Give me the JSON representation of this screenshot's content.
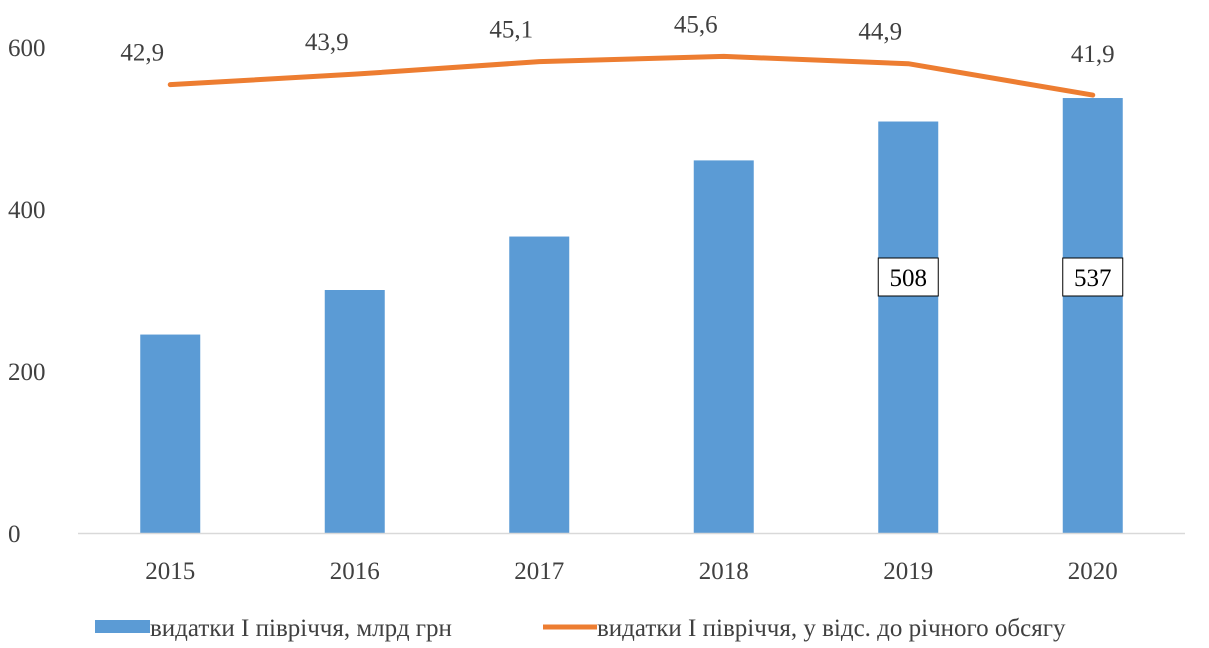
{
  "chart_data": {
    "type": "bar",
    "categories": [
      "2015",
      "2016",
      "2017",
      "2018",
      "2019",
      "2020"
    ],
    "series": [
      {
        "name": "видатки І півріччя, млрд грн",
        "chart_type": "bar",
        "axis": "left",
        "color": "#5B9BD5",
        "values": [
          245,
          300,
          366,
          460,
          508,
          537
        ],
        "data_labels": [
          null,
          null,
          null,
          null,
          "508",
          "537"
        ]
      },
      {
        "name": "видатки І півріччя, у відс. до річного обсягу",
        "chart_type": "line",
        "axis": "right-hidden",
        "color": "#ED7D31",
        "values": [
          42.9,
          43.9,
          45.1,
          45.6,
          44.9,
          41.9
        ],
        "data_labels": [
          "42,9",
          "43,9",
          "45,1",
          "45,6",
          "44,9",
          "41,9"
        ]
      }
    ],
    "y_ticks": [
      "0",
      "200",
      "400",
      "600"
    ],
    "ylim": [
      0,
      600
    ],
    "y2lim": [
      0,
      46.5
    ],
    "title": "",
    "xlabel": "",
    "ylabel": "",
    "grid": false,
    "legend": "bottom"
  }
}
